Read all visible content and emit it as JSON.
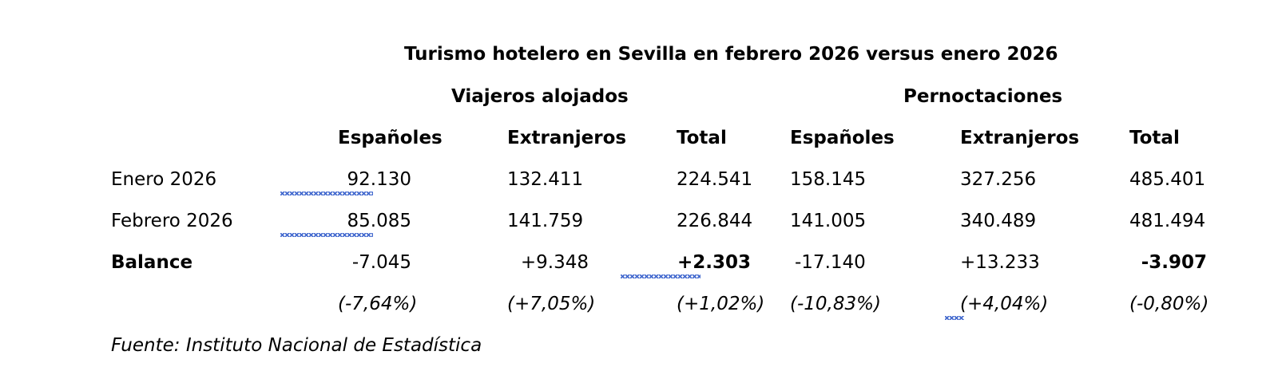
{
  "title": "Turismo hotelero en Sevilla en febrero 2026 versus enero 2026",
  "groups": {
    "viajeros": "Viajeros alojados",
    "pernoctaciones": "Pernoctaciones"
  },
  "columns": [
    "Españoles",
    "Extranjeros",
    "Total",
    "Españoles",
    "Extranjeros",
    "Total"
  ],
  "rows": [
    {
      "label": "Enero 2026",
      "values": [
        "92.130",
        "132.411",
        "224.541",
        "158.145",
        "327.256",
        "485.401"
      ]
    },
    {
      "label": "Febrero 2026",
      "values": [
        "85.085",
        "141.759",
        "226.844",
        "141.005",
        "340.489",
        "481.494"
      ]
    },
    {
      "label": "Balance",
      "values": [
        "-7.045",
        "+9.348",
        "+2.303",
        "-17.140",
        "+13.233",
        "-3.907"
      ]
    }
  ],
  "percentages": [
    "(-7,64%)",
    "(+7,05%)",
    "(+1,02%)",
    "(-10,83%)",
    "(+4,04%)",
    "(-0,80%)"
  ],
  "source": "Fuente: Instituto Nacional de Estadística",
  "colors": {
    "text": "#000000",
    "spellcheck_underline": "#4a6fd0"
  }
}
